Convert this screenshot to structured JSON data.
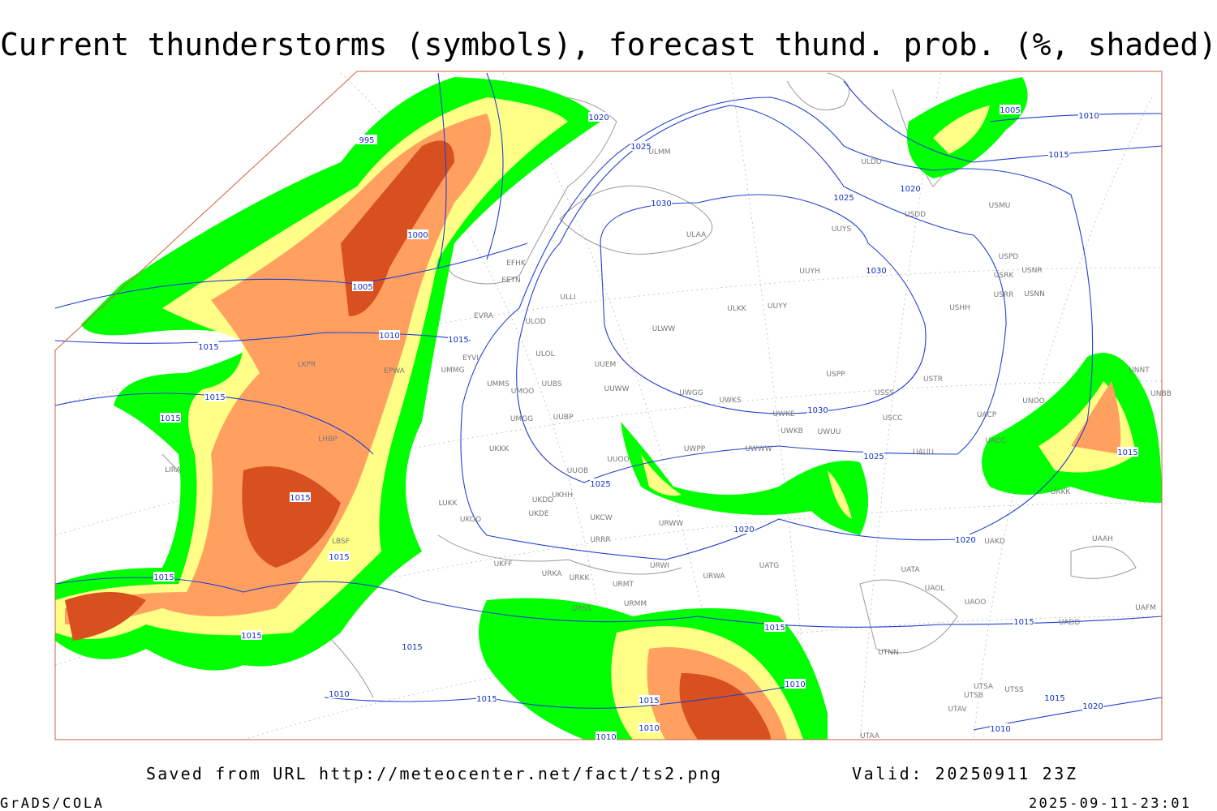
{
  "title": "Current thunderstorms (symbols), forecast thund. prob. (%, shaded)",
  "footer": {
    "saved_from": "Saved from URL http://meteocenter.net/fact/ts2.png",
    "valid": "Valid: 20250911 23Z",
    "credit": "GrADS/COLA",
    "timestamp": "2025-09-11-23:01"
  },
  "map": {
    "isobar_labels": [
      995,
      1020,
      1025,
      1030,
      1025,
      1020,
      1005,
      1010,
      1015,
      1000,
      1005,
      1010,
      1015,
      1015,
      1015,
      1015,
      1030,
      1030,
      1025,
      1025,
      1020,
      1020,
      1015,
      1015,
      1015,
      1015,
      1015,
      1015,
      1015,
      1010,
      1015,
      1015,
      1010,
      1010,
      1010,
      1015,
      1020,
      1010,
      1015
    ],
    "stations": [
      "ULMM",
      "ULDD",
      "USDD",
      "USMU",
      "ULAA",
      "UUYS",
      "UUYH",
      "ULKK",
      "UUYY",
      "ULWW",
      "ULLI",
      "ULOD",
      "ULOL",
      "EFHK",
      "EETN",
      "EVRA",
      "EYVI",
      "UMMG",
      "EPWA",
      "LKPR",
      "UUEM",
      "UUWW",
      "UMMS",
      "UMOO",
      "UUBS",
      "UWGG",
      "UWKS",
      "UWKE",
      "USPP",
      "USSS",
      "USTR",
      "USCC",
      "USHH",
      "USPD",
      "USRK",
      "USNR",
      "USRR",
      "USNN",
      "UMGG",
      "UUBP",
      "UKKK",
      "UUOO",
      "UWPP",
      "UWWW",
      "UWKB",
      "UWUU",
      "UUOB",
      "UKHH",
      "UKDD",
      "UKDE",
      "LUKK",
      "UKOO",
      "UKCW",
      "URWW",
      "URRR",
      "UKFF",
      "URKA",
      "URKK",
      "URWI",
      "URMT",
      "URMM",
      "URSS",
      "UATG",
      "URWA",
      "UATA",
      "UAOL",
      "UAOO",
      "UAKD",
      "UACC",
      "UACP",
      "UAUU",
      "UNOO",
      "UNNT",
      "UNBB",
      "UAKK",
      "UAAH",
      "UAFM",
      "UADD",
      "UTNN",
      "UTSA",
      "UTSS",
      "UTSB",
      "UTAV",
      "UTAA",
      "LIRA",
      "LHBP",
      "LBSF"
    ]
  }
}
